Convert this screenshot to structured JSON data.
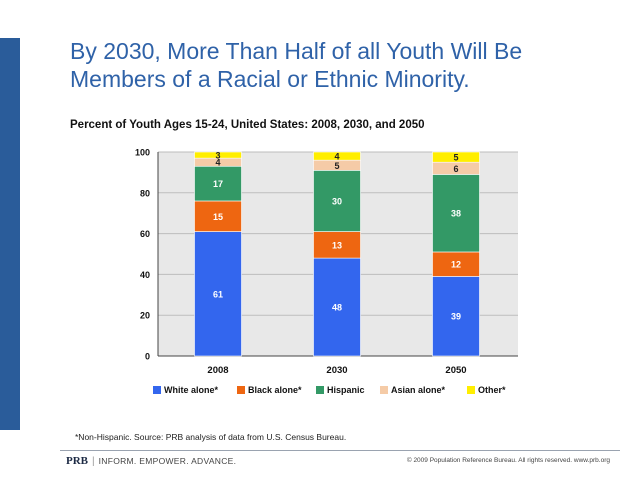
{
  "title_line1": "By 2030, More Than Half of all Youth Will Be",
  "title_line2": "Members of a Racial or Ethnic Minority.",
  "subtitle": "Percent of Youth Ages 15-24, United States: 2008, 2030, and 2050",
  "footnote": "*Non-Hispanic. Source: PRB analysis of data from U.S. Census Bureau.",
  "footer": {
    "brand": "PRB",
    "tagline": "INFORM. EMPOWER. ADVANCE.",
    "copyright": "© 2009 Population Reference Bureau. All rights reserved. www.prb.org"
  },
  "colors": {
    "White alone*": "#3366ee",
    "Black alone*": "#ee6611",
    "Hispanic": "#339966",
    "Asian alone*": "#f5cba7",
    "Other*": "#ffee00"
  },
  "chart_data": {
    "type": "bar",
    "stacked": true,
    "categories": [
      "2008",
      "2030",
      "2050"
    ],
    "series": [
      {
        "name": "White alone*",
        "values": [
          61,
          48,
          39
        ]
      },
      {
        "name": "Black alone*",
        "values": [
          15,
          13,
          12
        ]
      },
      {
        "name": "Hispanic",
        "values": [
          17,
          30,
          38
        ]
      },
      {
        "name": "Asian alone*",
        "values": [
          4,
          5,
          6
        ]
      },
      {
        "name": "Other*",
        "values": [
          3,
          4,
          5
        ]
      }
    ],
    "ylim": [
      0,
      100
    ],
    "yticks": [
      0,
      20,
      40,
      60,
      80,
      100
    ],
    "grid": true,
    "legend": "bottom"
  }
}
